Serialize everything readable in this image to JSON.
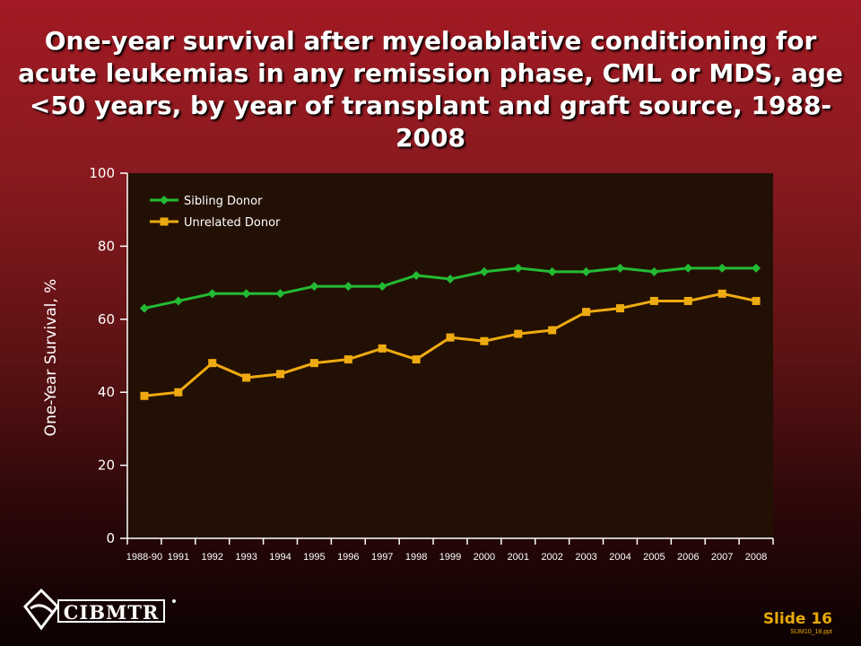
{
  "title": "One-year survival after myeloablative conditioning for acute leukemias in any remission phase, CML or MDS, age <50 years, by year of transplant and graft source, 1988-2008",
  "footer": {
    "logo_text": "CIBMTR",
    "slide_label": "Slide 16",
    "file_code": "SUM10_18.ppt"
  },
  "colors": {
    "plot_bg": "#231004",
    "sibling": "#22bb33",
    "unrelated": "#eeaa11",
    "axis": "#ffffff"
  },
  "chart_data": {
    "type": "line",
    "title": "One-year survival after myeloablative conditioning for acute leukemias in any remission phase, CML or MDS, age <50 years, by year of transplant and graft source, 1988-2008",
    "ylabel": "One-Year Survival, %",
    "xlabel": "",
    "ylim": [
      0,
      100
    ],
    "yticks": [
      0,
      20,
      40,
      60,
      80,
      100
    ],
    "categories": [
      "1988-90",
      "1991",
      "1992",
      "1993",
      "1994",
      "1995",
      "1996",
      "1997",
      "1998",
      "1999",
      "2000",
      "2001",
      "2002",
      "2003",
      "2004",
      "2005",
      "2006",
      "2007",
      "2008"
    ],
    "series": [
      {
        "name": "Sibling Donor",
        "marker": "diamond",
        "values": [
          63,
          65,
          67,
          67,
          67,
          69,
          69,
          69,
          72,
          71,
          73,
          74,
          73,
          73,
          74,
          73,
          74,
          74,
          74
        ]
      },
      {
        "name": "Unrelated Donor",
        "marker": "square",
        "values": [
          39,
          40,
          48,
          44,
          45,
          48,
          49,
          52,
          49,
          55,
          54,
          56,
          57,
          62,
          63,
          65,
          65,
          67,
          65
        ]
      }
    ],
    "legend": "top-left",
    "grid": false
  }
}
